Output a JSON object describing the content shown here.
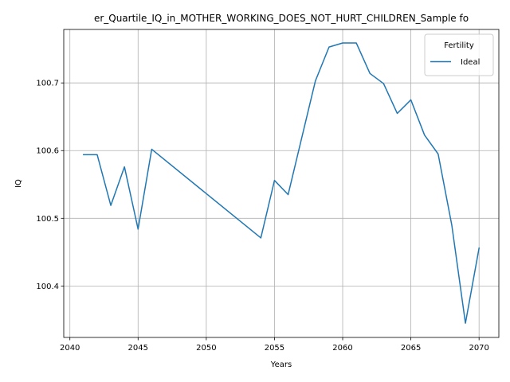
{
  "chart_data": {
    "type": "line",
    "title": "er_Quartile_IQ_in_MOTHER_WORKING_DOES_NOT_HURT_CHILDREN_Sample fo",
    "xlabel": "Years",
    "ylabel": "IQ",
    "xlim": [
      2039.55,
      2071.45
    ],
    "ylim": [
      100.324,
      100.779
    ],
    "xticks": [
      2040,
      2045,
      2050,
      2055,
      2060,
      2065,
      2070
    ],
    "yticks": [
      100.4,
      100.5,
      100.6,
      100.7
    ],
    "grid": true,
    "legend": {
      "title": "Fertility",
      "placement": "top-right"
    },
    "series": [
      {
        "name": "Ideal",
        "color": "#1f77b4",
        "x": [
          2041,
          2042,
          2043,
          2044,
          2045,
          2046,
          2054,
          2055,
          2056,
          2058,
          2059,
          2060,
          2061,
          2062,
          2063,
          2064,
          2065,
          2066,
          2067,
          2068,
          2069,
          2070
        ],
        "y": [
          100.594,
          100.594,
          100.519,
          100.576,
          100.484,
          100.602,
          100.471,
          100.556,
          100.535,
          100.703,
          100.753,
          100.759,
          100.759,
          100.714,
          100.699,
          100.655,
          100.675,
          100.623,
          100.595,
          100.49,
          100.345,
          100.456
        ]
      }
    ]
  }
}
